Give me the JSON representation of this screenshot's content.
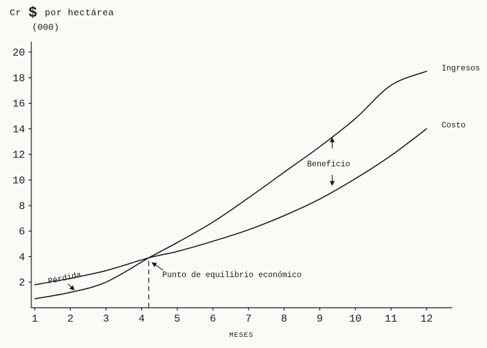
{
  "chart_data": {
    "type": "line",
    "title_prefix": "Cr",
    "currency_symbol": "$",
    "title_suffix": "por hectárea",
    "subtitle": "(000)",
    "title_full": "Cr $ por hectárea (000)",
    "xlabel": "MESES",
    "xlim": [
      1,
      12
    ],
    "ylim": [
      0,
      20
    ],
    "grid": false,
    "x_ticks": [
      1,
      2,
      3,
      4,
      5,
      6,
      7,
      8,
      9,
      10,
      11,
      12
    ],
    "y_ticks": [
      2,
      4,
      6,
      8,
      10,
      12,
      14,
      16,
      18,
      20
    ],
    "series": [
      {
        "name": "Ingresos",
        "points": [
          [
            1,
            0.7
          ],
          [
            2,
            1.2
          ],
          [
            3,
            2.0
          ],
          [
            4.2,
            3.9
          ],
          [
            5,
            5.1
          ],
          [
            6,
            6.7
          ],
          [
            7,
            8.6
          ],
          [
            8,
            10.6
          ],
          [
            9,
            12.6
          ],
          [
            10,
            14.8
          ],
          [
            11,
            17.4
          ],
          [
            12,
            18.5
          ]
        ]
      },
      {
        "name": "Costo",
        "points": [
          [
            1,
            1.8
          ],
          [
            2,
            2.3
          ],
          [
            3,
            2.9
          ],
          [
            4.2,
            3.9
          ],
          [
            5,
            4.4
          ],
          [
            6,
            5.2
          ],
          [
            7,
            6.1
          ],
          [
            8,
            7.2
          ],
          [
            9,
            8.5
          ],
          [
            10,
            10.1
          ],
          [
            11,
            11.9
          ],
          [
            12,
            14.0
          ]
        ]
      }
    ],
    "breakeven": {
      "x": 4.2,
      "y": 3.9,
      "label": "Punto de equilibrio económico"
    },
    "annotations": [
      {
        "id": "series-label-ingresos",
        "text": "Ingresos",
        "x": 12.42,
        "y": 18.55,
        "anchor": "start"
      },
      {
        "id": "series-label-costo",
        "text": "Costo",
        "x": 12.42,
        "y": 14.1,
        "anchor": "start"
      },
      {
        "id": "beneficio-label",
        "text": "Beneficio",
        "x": 9.25,
        "y": 11.05,
        "anchor": "middle"
      },
      {
        "id": "perdida-label",
        "text": "Pérdida",
        "x": 1.85,
        "y": 2.15,
        "anchor": "middle",
        "rotate": -12
      },
      {
        "id": "breakeven-label",
        "text": "Punto de equilibrio económico",
        "x": 4.58,
        "y": 2.4,
        "anchor": "start"
      }
    ]
  }
}
